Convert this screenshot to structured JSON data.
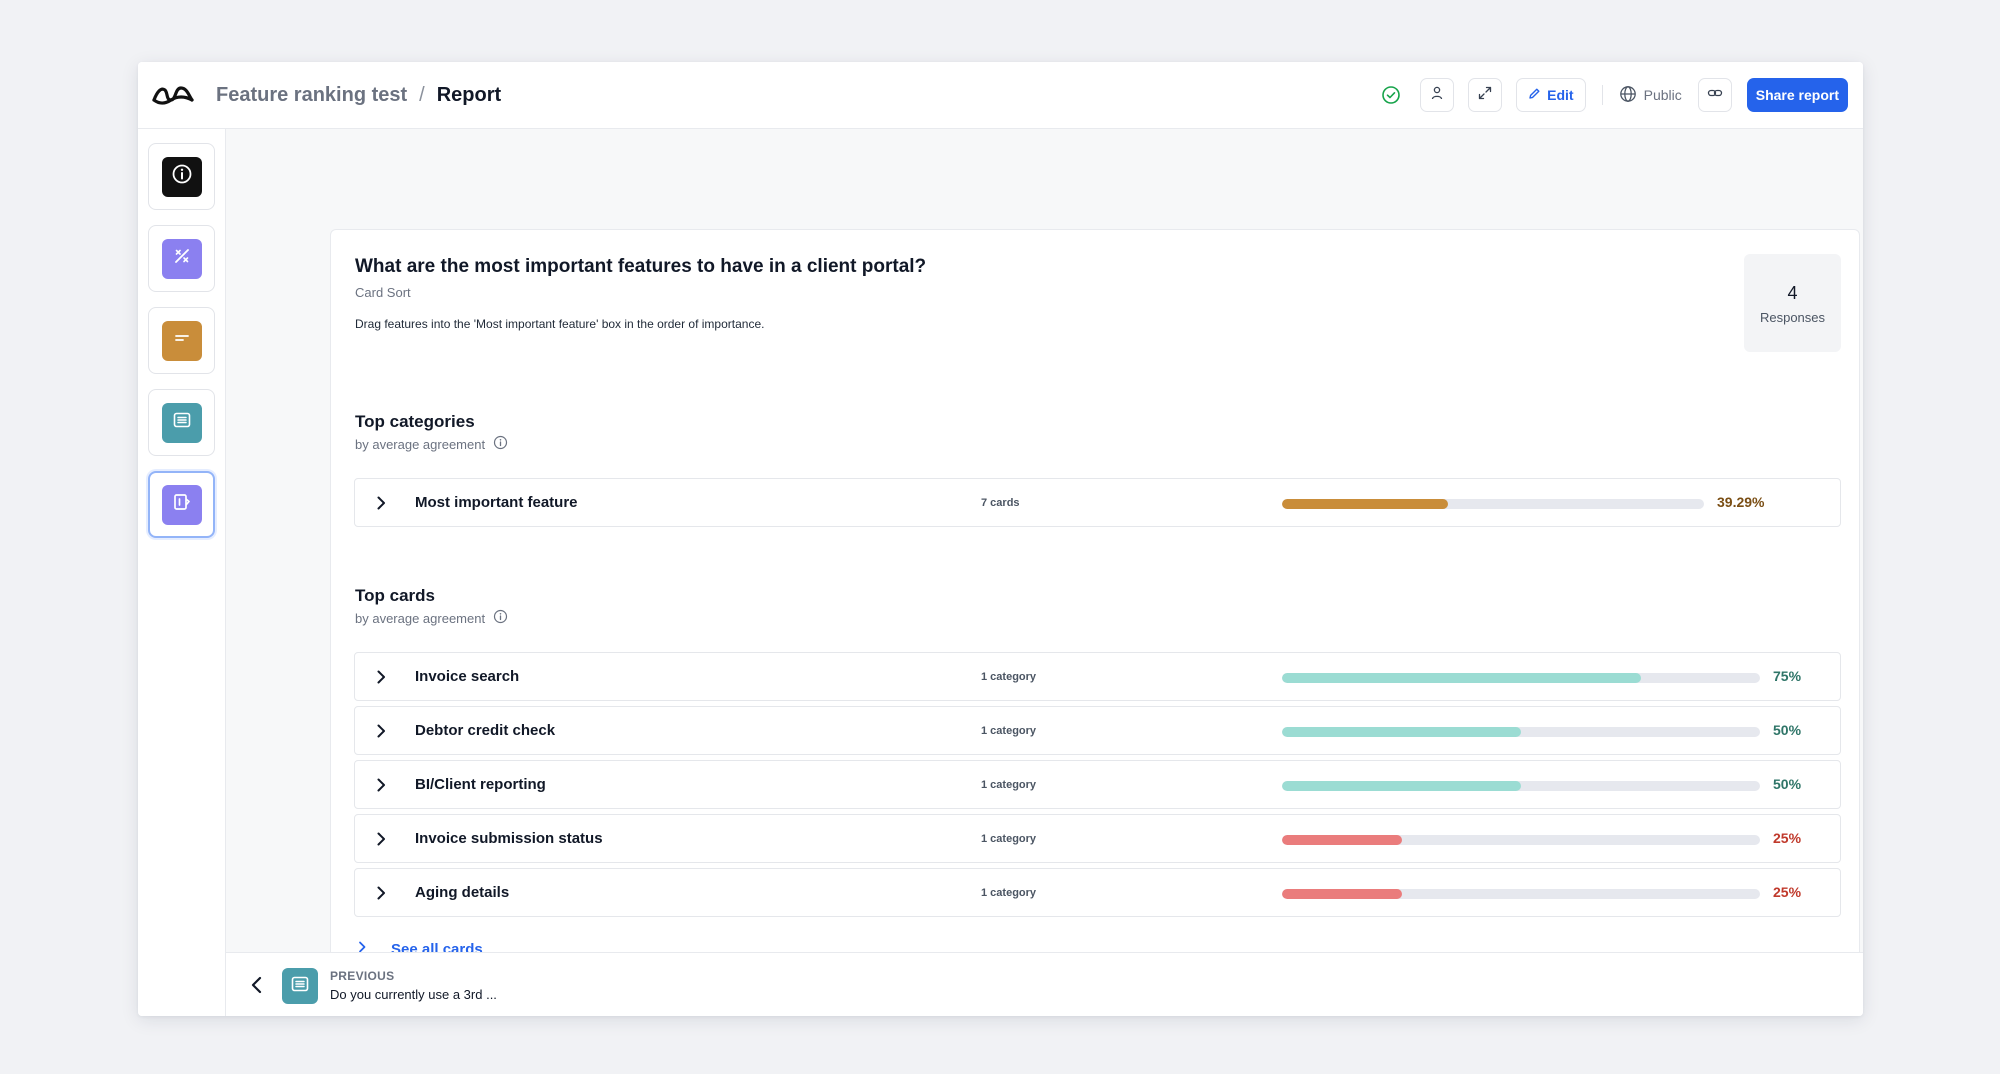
{
  "header": {
    "project_name": "Feature ranking test",
    "separator": "/",
    "current_page": "Report",
    "edit_label": "Edit",
    "visibility_label": "Public",
    "share_label": "Share report"
  },
  "sidebar": {
    "items": [
      {
        "icon": "info-icon",
        "color": "#111111",
        "active": false
      },
      {
        "icon": "percent-icon",
        "color": "#8b80f0",
        "active": false
      },
      {
        "icon": "short-text-icon",
        "color": "#c98d3a",
        "active": false
      },
      {
        "icon": "list-icon",
        "color": "#4b9dab",
        "active": false
      },
      {
        "icon": "card-sort-icon",
        "color": "#8b80f0",
        "active": true
      }
    ]
  },
  "question": {
    "title": "What are the most important features to have in a client portal?",
    "type": "Card Sort",
    "description": "Drag features into the 'Most important feature' box in the order of importance.",
    "responses_count": "4",
    "responses_label": "Responses"
  },
  "top_categories": {
    "title": "Top categories",
    "subtitle": "by average agreement",
    "rows": [
      {
        "name": "Most important feature",
        "meta": "7 cards",
        "percent_label": "39.29%",
        "value": 39.29,
        "color": "#c98d3a",
        "text_color": "#7a4e14"
      }
    ]
  },
  "top_cards": {
    "title": "Top cards",
    "subtitle": "by average agreement",
    "rows": [
      {
        "name": "Invoice search",
        "meta": "1 category",
        "percent_label": "75%",
        "value": 75,
        "color": "#9bdcd3",
        "text_color": "#2f7568"
      },
      {
        "name": "Debtor credit check",
        "meta": "1 category",
        "percent_label": "50%",
        "value": 50,
        "color": "#9bdcd3",
        "text_color": "#2f7568"
      },
      {
        "name": "BI/Client reporting",
        "meta": "1 category",
        "percent_label": "50%",
        "value": 50,
        "color": "#9bdcd3",
        "text_color": "#2f7568"
      },
      {
        "name": "Invoice submission status",
        "meta": "1 category",
        "percent_label": "25%",
        "value": 25,
        "color": "#ea7c7c",
        "text_color": "#c0392b"
      },
      {
        "name": "Aging details",
        "meta": "1 category",
        "percent_label": "25%",
        "value": 25,
        "color": "#ea7c7c",
        "text_color": "#c0392b"
      }
    ],
    "see_all_label": "See all cards"
  },
  "footer": {
    "previous_label": "PREVIOUS",
    "previous_text": "Do you currently use a 3rd ..."
  }
}
